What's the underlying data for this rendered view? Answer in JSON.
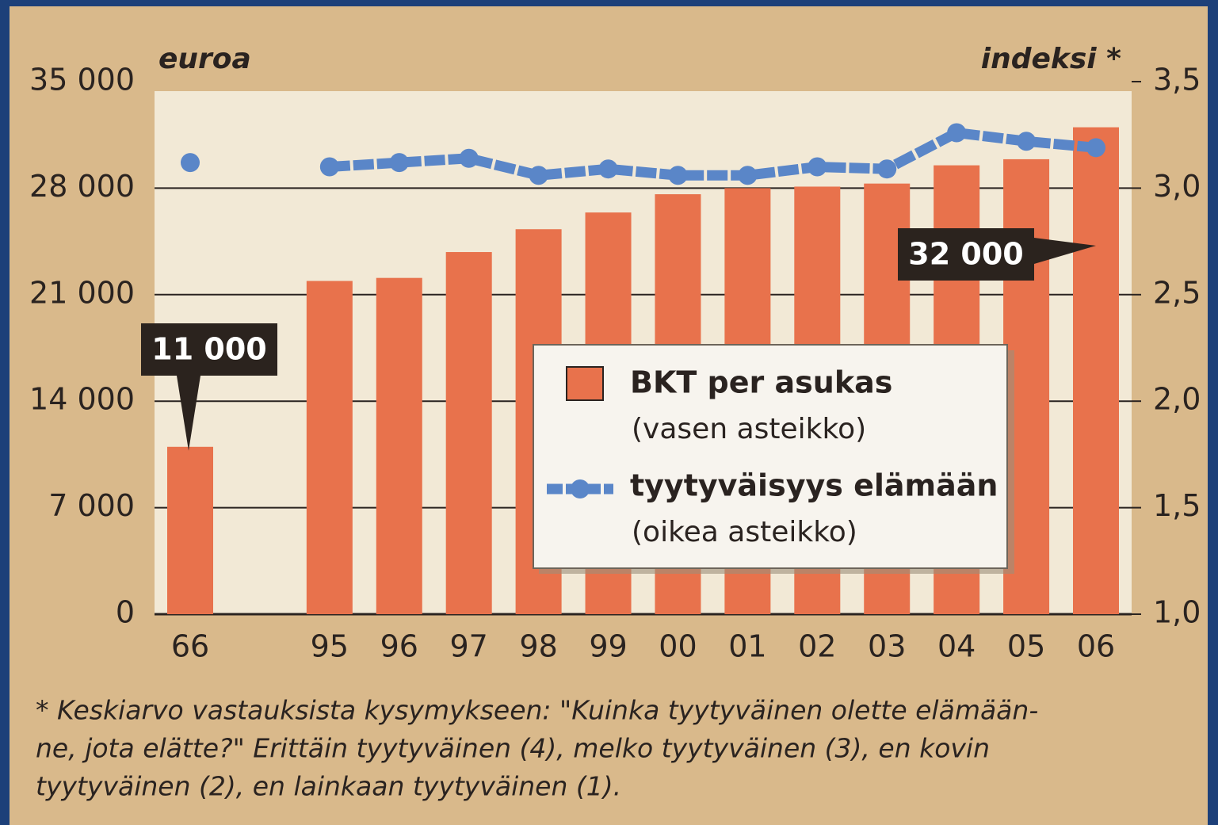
{
  "chart_data": {
    "type": "bar",
    "categories": [
      "66",
      null,
      "95",
      "96",
      "97",
      "98",
      "99",
      "00",
      "01",
      "02",
      "03",
      "04",
      "05",
      "06"
    ],
    "series": [
      {
        "name": "BKT per asukas",
        "note": "(vasen asteikko)",
        "color": "#e8724c",
        "values": [
          11000,
          null,
          21900,
          22100,
          23800,
          25300,
          26400,
          27600,
          28000,
          28100,
          28300,
          29500,
          29900,
          32000
        ],
        "value_labels": [
          "11 000",
          null,
          null,
          null,
          null,
          null,
          null,
          null,
          null,
          null,
          null,
          null,
          null,
          "32 000"
        ]
      },
      {
        "name": "tyytyväisyys elämään",
        "note": "(oikea asteikko)",
        "color": "#5a86c8",
        "type": "line",
        "axis": "y2",
        "values": [
          3.12,
          null,
          3.1,
          3.12,
          3.14,
          3.06,
          3.09,
          3.06,
          3.06,
          3.1,
          3.09,
          3.26,
          3.22,
          3.19
        ]
      }
    ],
    "ylabel": "euroa",
    "y2label": "indeksi *",
    "ylim": [
      0,
      35000
    ],
    "yticks": [
      0,
      {
        "value": 7000,
        "label": "7 000"
      },
      {
        "value": 14000,
        "label": "14 000"
      },
      {
        "value": 21000,
        "label": "21 000"
      },
      {
        "value": 28000,
        "label": "28 000"
      },
      {
        "value": 35000,
        "label": "35 000"
      }
    ],
    "y2lim": [
      1,
      3.5
    ],
    "y2ticks": [
      {
        "value": 1,
        "label": "1,0"
      },
      {
        "value": 1.5,
        "label": "1,5"
      },
      {
        "value": 2,
        "label": "2,0"
      },
      {
        "value": 2.5,
        "label": "2,5"
      },
      {
        "value": 3,
        "label": "3,0"
      },
      {
        "value": 3.5,
        "label": "3,5"
      }
    ],
    "grid": true,
    "footnote": [
      "* Keskiarvo vastauksista kysymykseen: \"Kuinka tyytyväinen olette elämään-",
      "ne, jota elätte?\" Erittäin tyytyväinen (4), melko tyytyväinen (3), en kovin",
      "tyytyväinen (2), en lainkaan tyytyväinen (1)."
    ]
  }
}
